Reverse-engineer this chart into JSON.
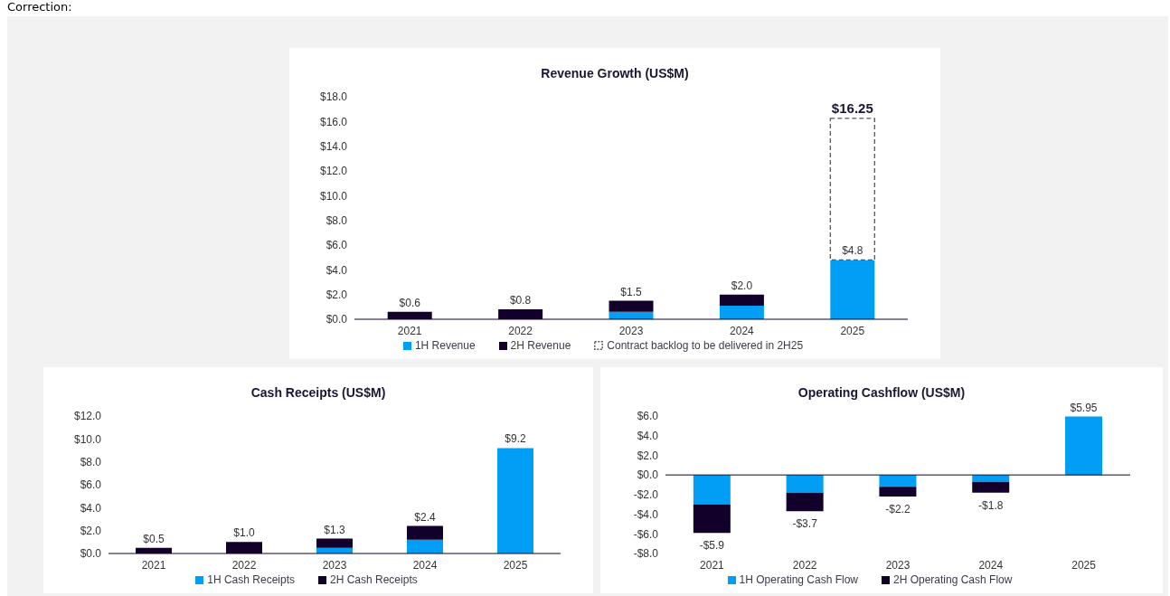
{
  "chart_data": [
    {
      "type": "bar",
      "title": "Revenue Growth (US$M)",
      "annotations": [
        "Correction:"
      ],
      "categories": [
        "2021",
        "2022",
        "2023",
        "2024",
        "2025"
      ],
      "stacked": true,
      "series": [
        {
          "name": "1H Revenue",
          "color": "#009ff5",
          "values": [
            null,
            null,
            0.6,
            1.1,
            4.8
          ],
          "value_labels": [
            null,
            null,
            null,
            null,
            "$4.8"
          ]
        },
        {
          "name": "2H Revenue",
          "color": "#12002b",
          "values": [
            0.6,
            0.8,
            0.9,
            0.9,
            null
          ]
        },
        {
          "name": "Contract backlog to be delivered in 2H25",
          "color": "#595959",
          "line_style": "dashed",
          "values": [
            null,
            null,
            null,
            null,
            11.45
          ]
        }
      ],
      "totals": [
        "$0.6",
        "$0.8",
        "$1.5",
        "$2.0",
        "$16.25"
      ],
      "ylim": [
        0,
        18
      ],
      "yticks": [
        {
          "value": 0,
          "label": "$0.0"
        },
        {
          "value": 2,
          "label": "$2.0"
        },
        {
          "value": 4,
          "label": "$4.0"
        },
        {
          "value": 6,
          "label": "$6.0"
        },
        {
          "value": 8,
          "label": "$8.0"
        },
        {
          "value": 10,
          "label": "$10.0"
        },
        {
          "value": 12,
          "label": "$12.0"
        },
        {
          "value": 14,
          "label": "$14.0"
        },
        {
          "value": 16,
          "label": "$16.0"
        },
        {
          "value": 18,
          "label": "$18.0"
        }
      ],
      "grid": false,
      "legend": "bottom"
    },
    {
      "type": "bar",
      "title": "Cash Receipts (US$M)",
      "categories": [
        "2021",
        "2022",
        "2023",
        "2024",
        "2025"
      ],
      "stacked": true,
      "series": [
        {
          "name": "1H Cash Receipts",
          "color": "#009ff5",
          "values": [
            null,
            null,
            0.5,
            1.2,
            9.2
          ]
        },
        {
          "name": "2H Cash Receipts",
          "color": "#12002b",
          "values": [
            0.5,
            1.0,
            0.8,
            1.2,
            null
          ]
        }
      ],
      "totals": [
        "$0.5",
        "$1.0",
        "$1.3",
        "$2.4",
        "$9.2"
      ],
      "ylim": [
        0,
        12
      ],
      "yticks": [
        {
          "value": 0,
          "label": "$0.0"
        },
        {
          "value": 2,
          "label": "$2.0"
        },
        {
          "value": 4,
          "label": "$4.0"
        },
        {
          "value": 6,
          "label": "$6.0"
        },
        {
          "value": 8,
          "label": "$8.0"
        },
        {
          "value": 10,
          "label": "$10.0"
        },
        {
          "value": 12,
          "label": "$12.0"
        }
      ],
      "grid": false,
      "legend": "bottom"
    },
    {
      "type": "bar",
      "title": "Operating Cashflow (US$M)",
      "categories": [
        "2021",
        "2022",
        "2023",
        "2024",
        "2025"
      ],
      "stacked": true,
      "series": [
        {
          "name": "1H Operating Cash Flow",
          "color": "#009ff5",
          "values": [
            -3.0,
            -1.8,
            -1.2,
            -0.7,
            5.95
          ]
        },
        {
          "name": "2H Operating Cash Flow",
          "color": "#12002b",
          "values": [
            -2.9,
            -1.9,
            -1.0,
            -1.1,
            null
          ]
        }
      ],
      "totals": [
        "-$5.9",
        "-$3.7",
        "-$2.2",
        "-$1.8",
        "$5.95"
      ],
      "ylim": [
        -8,
        6
      ],
      "yticks": [
        {
          "value": -8,
          "label": "-$8.0"
        },
        {
          "value": -6,
          "label": "-$6.0"
        },
        {
          "value": -4,
          "label": "-$4.0"
        },
        {
          "value": -2,
          "label": "-$2.0"
        },
        {
          "value": 0,
          "label": "$0.0"
        },
        {
          "value": 2,
          "label": "$2.0"
        },
        {
          "value": 4,
          "label": "$4.0"
        },
        {
          "value": 6,
          "label": "$6.0"
        }
      ],
      "ref_lines": [
        {
          "axis": "y",
          "value": 0,
          "color": "#12002b"
        }
      ],
      "grid": false,
      "legend": "bottom"
    }
  ]
}
